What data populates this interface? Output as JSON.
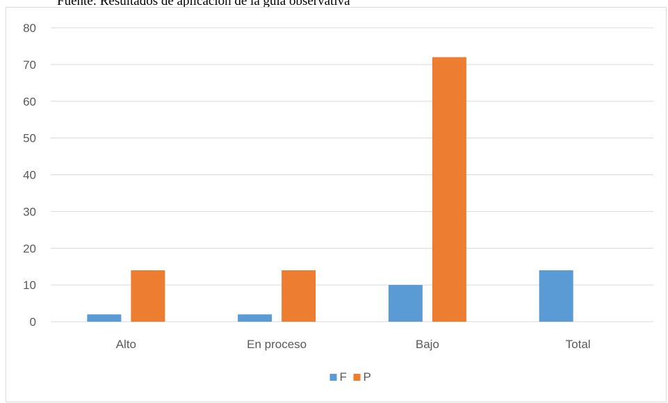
{
  "caption": "Fuente: Resultados de aplicación de la guía observativa",
  "chart_data": {
    "type": "bar",
    "categories": [
      "Alto",
      "En proceso",
      "Bajo",
      "Total"
    ],
    "series": [
      {
        "name": "F",
        "values": [
          2,
          2,
          10,
          14
        ],
        "color": "#5b9bd5"
      },
      {
        "name": "P",
        "values": [
          14,
          14,
          72,
          0
        ],
        "color": "#ed7d31"
      }
    ],
    "ylim": [
      0,
      80
    ],
    "yticks": [
      0,
      10,
      20,
      30,
      40,
      50,
      60,
      70,
      80
    ],
    "grid": true,
    "legend": "bottom"
  }
}
